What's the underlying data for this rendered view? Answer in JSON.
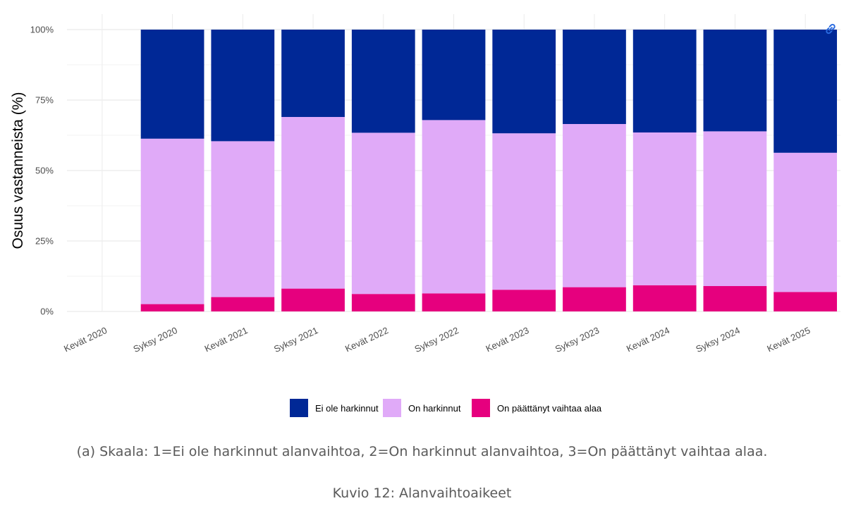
{
  "chart_data": {
    "type": "bar",
    "stacked": true,
    "normalized": true,
    "ylabel": "Osuus vastanneista (%)",
    "xlabel": "",
    "ylim": [
      0,
      100
    ],
    "yticks": [
      "0%",
      "25%",
      "50%",
      "75%",
      "100%"
    ],
    "categories": [
      "Kevät 2020",
      "Syksy 2020",
      "Kevät 2021",
      "Syksy 2021",
      "Kevät 2022",
      "Syksy 2022",
      "Kevät 2023",
      "Syksy 2023",
      "Kevät 2024",
      "Syksy 2024",
      "Kevät 2025"
    ],
    "series": [
      {
        "name": "On päättänyt vaihtaa alaa",
        "color": "#e6007e",
        "values": [
          null,
          2.6,
          5.1,
          8.1,
          6.2,
          6.4,
          7.7,
          8.6,
          9.3,
          9.0,
          6.9
        ]
      },
      {
        "name": "On harkinnut",
        "color": "#e0aaf8",
        "values": [
          null,
          58.7,
          55.3,
          60.9,
          57.2,
          61.5,
          55.5,
          57.9,
          54.2,
          54.9,
          49.4
        ]
      },
      {
        "name": "Ei ole harkinnut",
        "color": "#002896",
        "values": [
          null,
          38.7,
          39.6,
          31.0,
          36.6,
          32.1,
          36.8,
          33.5,
          36.5,
          36.1,
          43.7
        ]
      }
    ],
    "legend": {
      "position": "bottom",
      "order": [
        "Ei ole harkinnut",
        "On harkinnut",
        "On päättänyt vaihtaa alaa"
      ]
    },
    "grid": true
  },
  "captions": {
    "subcaption": "(a) Skaala: 1=Ei ole harkinnut alanvaihtoa, 2=On harkinnut alanvaihtoa, 3=On päättänyt vaihtaa alaa.",
    "figure": "Kuvio 12: Alanvaihtoaikeet"
  },
  "icons": {
    "link": "link-icon"
  }
}
